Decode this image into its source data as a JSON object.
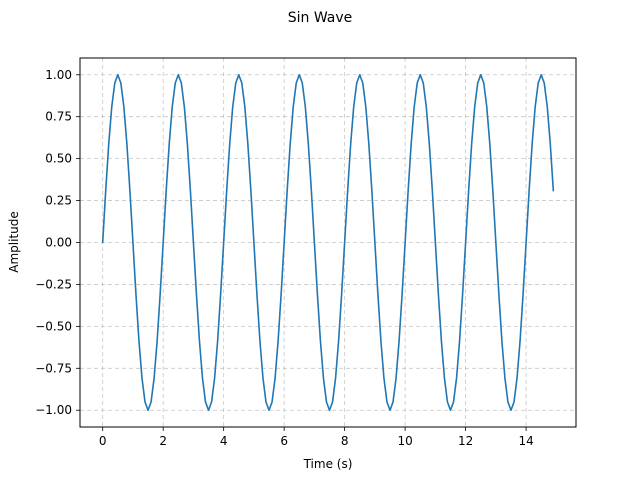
{
  "chart_data": {
    "type": "line",
    "title": "Sin Wave",
    "xlabel": "Time (s)",
    "ylabel": "Amplitude",
    "xlim": [
      -0.75,
      15.65
    ],
    "ylim": [
      -1.1,
      1.1
    ],
    "xticks": [
      0,
      2,
      4,
      6,
      8,
      10,
      12,
      14
    ],
    "xtick_labels": [
      "0",
      "2",
      "4",
      "6",
      "8",
      "10",
      "12",
      "14"
    ],
    "yticks": [
      -1.0,
      -0.75,
      -0.5,
      -0.25,
      0.0,
      0.25,
      0.5,
      0.75,
      1.0
    ],
    "ytick_labels": [
      "−1.00",
      "−0.75",
      "−0.50",
      "−0.25",
      "0.00",
      "0.25",
      "0.50",
      "0.75",
      "1.00"
    ],
    "grid": true,
    "grid_style": "dashed",
    "series": [
      {
        "color": "#1f77b4",
        "x": [
          0.0,
          0.1,
          0.2,
          0.3,
          0.4,
          0.5,
          0.6,
          0.7,
          0.8,
          0.9,
          1.0,
          1.1,
          1.2,
          1.3,
          1.4,
          1.5,
          1.6,
          1.7,
          1.8,
          1.9,
          2.0,
          2.1,
          2.2,
          2.3,
          2.4,
          2.5,
          2.6,
          2.7,
          2.8,
          2.9,
          3.0,
          3.1,
          3.2,
          3.3,
          3.4,
          3.5,
          3.6,
          3.7,
          3.8,
          3.9,
          4.0,
          4.1,
          4.2,
          4.3,
          4.4,
          4.5,
          4.6,
          4.7,
          4.8,
          4.9,
          5.0,
          5.1,
          5.2,
          5.3,
          5.4,
          5.5,
          5.6,
          5.7,
          5.8,
          5.9,
          6.0,
          6.1,
          6.2,
          6.3,
          6.4,
          6.5,
          6.6,
          6.7,
          6.8,
          6.9,
          7.0,
          7.1,
          7.2,
          7.3,
          7.4,
          7.5,
          7.6,
          7.7,
          7.8,
          7.9,
          8.0,
          8.1,
          8.2,
          8.3,
          8.4,
          8.5,
          8.6,
          8.7,
          8.8,
          8.9,
          9.0,
          9.1,
          9.2,
          9.3,
          9.4,
          9.5,
          9.6,
          9.7,
          9.8,
          9.9,
          10.0,
          10.1,
          10.2,
          10.3,
          10.4,
          10.5,
          10.6,
          10.7,
          10.8,
          10.9,
          11.0,
          11.1,
          11.2,
          11.3,
          11.4,
          11.5,
          11.6,
          11.7,
          11.8,
          11.9,
          12.0,
          12.1,
          12.2,
          12.3,
          12.4,
          12.5,
          12.6,
          12.7,
          12.8,
          12.9,
          13.0,
          13.1,
          13.2,
          13.3,
          13.4,
          13.5,
          13.6,
          13.7,
          13.8,
          13.9,
          14.0,
          14.1,
          14.2,
          14.3,
          14.4,
          14.5,
          14.6,
          14.7,
          14.8,
          14.9
        ],
        "y": [
          0.0,
          0.309,
          0.588,
          0.809,
          0.951,
          1.0,
          0.951,
          0.809,
          0.588,
          0.309,
          0.0,
          -0.309,
          -0.588,
          -0.809,
          -0.951,
          -1.0,
          -0.951,
          -0.809,
          -0.588,
          -0.309,
          0.0,
          0.309,
          0.588,
          0.809,
          0.951,
          1.0,
          0.951,
          0.809,
          0.588,
          0.309,
          0.0,
          -0.309,
          -0.588,
          -0.809,
          -0.951,
          -1.0,
          -0.951,
          -0.809,
          -0.588,
          -0.309,
          0.0,
          0.309,
          0.588,
          0.809,
          0.951,
          1.0,
          0.951,
          0.809,
          0.588,
          0.309,
          0.0,
          -0.309,
          -0.588,
          -0.809,
          -0.951,
          -1.0,
          -0.951,
          -0.809,
          -0.588,
          -0.309,
          0.0,
          0.309,
          0.588,
          0.809,
          0.951,
          1.0,
          0.951,
          0.809,
          0.588,
          0.309,
          0.0,
          -0.309,
          -0.588,
          -0.809,
          -0.951,
          -1.0,
          -0.951,
          -0.809,
          -0.588,
          -0.309,
          0.0,
          0.309,
          0.588,
          0.809,
          0.951,
          1.0,
          0.951,
          0.809,
          0.588,
          0.309,
          0.0,
          -0.309,
          -0.588,
          -0.809,
          -0.951,
          -1.0,
          -0.951,
          -0.809,
          -0.588,
          -0.309,
          0.0,
          0.309,
          0.588,
          0.809,
          0.951,
          1.0,
          0.951,
          0.809,
          0.588,
          0.309,
          0.0,
          -0.309,
          -0.588,
          -0.809,
          -0.951,
          -1.0,
          -0.951,
          -0.809,
          -0.588,
          -0.309,
          0.0,
          0.309,
          0.588,
          0.809,
          0.951,
          1.0,
          0.951,
          0.809,
          0.588,
          0.309,
          0.0,
          -0.309,
          -0.588,
          -0.809,
          -0.951,
          -1.0,
          -0.951,
          -0.809,
          -0.588,
          -0.309,
          0.0,
          0.309,
          0.588,
          0.809,
          0.951,
          1.0,
          0.951,
          0.809,
          0.588,
          0.309
        ]
      }
    ]
  }
}
